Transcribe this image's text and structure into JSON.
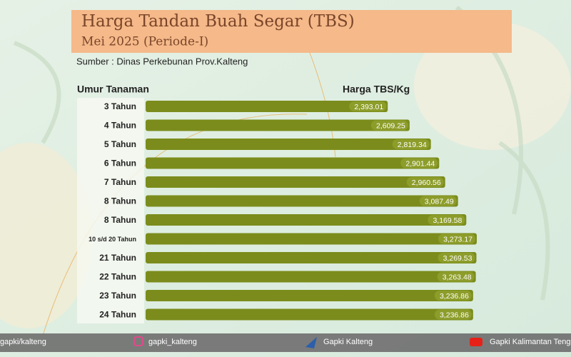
{
  "chart_data": {
    "type": "bar",
    "title": "Harga Tandan Buah Segar (TBS)",
    "subtitle": "Mei 2025 (Periode-I)",
    "source": "Sumber : Dinas Perkebunan Prov.Kalteng",
    "category_header": "Umur Tanaman",
    "value_header": "Harga TBS/Kg",
    "orientation": "horizontal",
    "color": "#7b8c1c",
    "categories": [
      "3 Tahun",
      "4 Tahun",
      "5 Tahun",
      "6 Tahun",
      "7 Tahun",
      "8 Tahun",
      "8 Tahun",
      "10 s/d 20 Tahun",
      "21 Tahun",
      "22 Tahun",
      "23 Tahun",
      "24 Tahun"
    ],
    "values": [
      2393.01,
      2609.25,
      2819.34,
      2901.44,
      2960.56,
      3087.49,
      3169.58,
      3273.17,
      3269.53,
      3263.48,
      3236.86,
      3236.86
    ],
    "value_labels": [
      "2,393.01",
      "2,609.25",
      "2,819.34",
      "2,901.44",
      "2,960.56",
      "3,087.49",
      "3,169.58",
      "3,273.17",
      "3,269.53",
      "3,263.48",
      "3,236.86",
      "3,236.86"
    ]
  },
  "footer": {
    "items": [
      "gapki/kalteng",
      "gapki_kalteng",
      "Gapki Kalteng",
      "Gapki Kalimantan Tengah"
    ]
  }
}
